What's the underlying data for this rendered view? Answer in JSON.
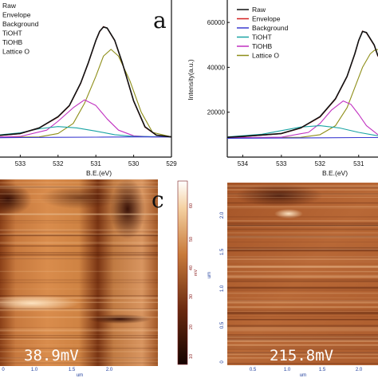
{
  "panels": {
    "a": "a",
    "c": "c"
  },
  "chart_data": [
    {
      "type": "line",
      "xlabel": "B.E.(eV)",
      "ylabel": "",
      "x_ticks": [
        533,
        532,
        531,
        530,
        529
      ],
      "xlim": [
        534,
        529
      ],
      "ylim": [
        0,
        70000
      ],
      "legend_placement": "top-left",
      "series": [
        {
          "name": "Raw",
          "color": "#111111",
          "x": [
            534,
            533,
            532.5,
            532,
            531.7,
            531.4,
            531.2,
            531,
            530.9,
            530.8,
            530.7,
            530.5,
            530.3,
            530,
            529.7,
            529.4,
            529
          ],
          "values": [
            9000,
            10500,
            13000,
            18000,
            23000,
            33000,
            42000,
            52000,
            56000,
            58000,
            57500,
            52000,
            42000,
            25000,
            13500,
            9800,
            9000
          ]
        },
        {
          "name": "Envelope",
          "color": "#d42020",
          "x": [
            534,
            533,
            532.5,
            532,
            531.7,
            531.4,
            531.2,
            531,
            530.9,
            530.8,
            530.7,
            530.5,
            530.3,
            530,
            529.7,
            529.4,
            529
          ],
          "values": [
            9000,
            10400,
            12900,
            17800,
            22800,
            32800,
            41800,
            51800,
            55800,
            58200,
            57400,
            51800,
            41800,
            24800,
            13300,
            9700,
            9000
          ]
        },
        {
          "name": "Background",
          "color": "#3a3ad0",
          "x": [
            534,
            533,
            532,
            531,
            530,
            529
          ],
          "values": [
            8600,
            8700,
            8800,
            8900,
            9000,
            9000
          ]
        },
        {
          "name": "TiOHT",
          "color": "#1aa4a4",
          "x": [
            534,
            533,
            532.5,
            532,
            531.5,
            531,
            530.5,
            530,
            529
          ],
          "values": [
            9200,
            10800,
            12600,
            13600,
            13000,
            11600,
            10000,
            9200,
            9000
          ]
        },
        {
          "name": "TiOHB",
          "color": "#c030c0",
          "x": [
            534,
            533,
            532.3,
            532,
            531.6,
            531.3,
            531,
            530.7,
            530.4,
            530,
            529.5,
            529
          ],
          "values": [
            8800,
            9200,
            12000,
            16000,
            22000,
            25500,
            23000,
            17000,
            12000,
            9500,
            9000,
            9000
          ]
        },
        {
          "name": "Lattice O",
          "color": "#8e8e18",
          "x": [
            534,
            532.5,
            532,
            531.6,
            531.3,
            531,
            530.8,
            530.6,
            530.4,
            530.1,
            529.8,
            529.5,
            529
          ],
          "values": [
            8800,
            9000,
            10500,
            15000,
            24000,
            36000,
            45000,
            48000,
            45000,
            34000,
            20000,
            11000,
            9000
          ]
        }
      ]
    },
    {
      "type": "line",
      "xlabel": "B.E.(eV)",
      "ylabel": "Intensity(a.u.)",
      "y_ticks": [
        20000,
        40000,
        60000
      ],
      "x_ticks": [
        534,
        533,
        532,
        531
      ],
      "xlim": [
        534.4,
        530.5
      ],
      "ylim": [
        0,
        70000
      ],
      "legend_placement": "top-left",
      "series": [
        {
          "name": "Raw",
          "color": "#111111",
          "x": [
            534.4,
            534,
            533,
            532.5,
            532,
            531.6,
            531.3,
            531.1,
            531,
            530.9,
            530.8,
            530.6,
            530.5
          ],
          "values": [
            8800,
            9200,
            10500,
            13000,
            18000,
            26000,
            36000,
            46000,
            52000,
            56000,
            55500,
            50000,
            45000
          ]
        },
        {
          "name": "Envelope",
          "color": "#d42020",
          "x": [
            534.4,
            534,
            533,
            532.5,
            532,
            531.6,
            531.3,
            531.1,
            531,
            530.9,
            530.8,
            530.6,
            530.5
          ],
          "values": [
            8800,
            9100,
            10400,
            12900,
            17800,
            25800,
            35800,
            45800,
            51800,
            56200,
            55300,
            49800,
            44800
          ]
        },
        {
          "name": "Background",
          "color": "#3a3ad0",
          "x": [
            534.4,
            533,
            532,
            531,
            530.5
          ],
          "values": [
            8400,
            8500,
            8600,
            8700,
            8700
          ]
        },
        {
          "name": "TiOHT",
          "color": "#1aa4a4",
          "x": [
            534.4,
            533.5,
            533,
            532.5,
            532,
            531.5,
            531,
            530.5
          ],
          "values": [
            9000,
            10200,
            11800,
            13400,
            14000,
            13000,
            11000,
            9500
          ]
        },
        {
          "name": "TiOHB",
          "color": "#c030c0",
          "x": [
            534.4,
            533,
            532.3,
            532,
            531.7,
            531.4,
            531.2,
            531,
            530.8,
            530.5
          ],
          "values": [
            8600,
            8900,
            11000,
            15000,
            21000,
            25000,
            23500,
            19000,
            14000,
            10000
          ]
        },
        {
          "name": "Lattice O",
          "color": "#8e8e18",
          "x": [
            534.4,
            532.5,
            532,
            531.6,
            531.3,
            531.1,
            530.9,
            530.7,
            530.6,
            530.5
          ],
          "values": [
            8600,
            8800,
            10000,
            14000,
            22000,
            31000,
            40000,
            46000,
            47500,
            48000
          ]
        }
      ]
    }
  ],
  "maps": [
    {
      "label_value": "38.9mV",
      "x_ticks": [
        "0",
        "1.0",
        "1.5",
        "2.0"
      ],
      "x_unit": "um",
      "colorbar_ticks": [
        "60",
        "50",
        "40",
        "30",
        "20",
        "10"
      ],
      "colorbar_unit": "mV"
    },
    {
      "label_value": "215.8mV",
      "x_ticks": [
        "0.5",
        "1.0",
        "1.5",
        "2.0"
      ],
      "x_unit": "um",
      "y_ticks": [
        "2.0",
        "1.5",
        "1.0",
        "0.5",
        "0"
      ],
      "y_unit": "um"
    }
  ]
}
